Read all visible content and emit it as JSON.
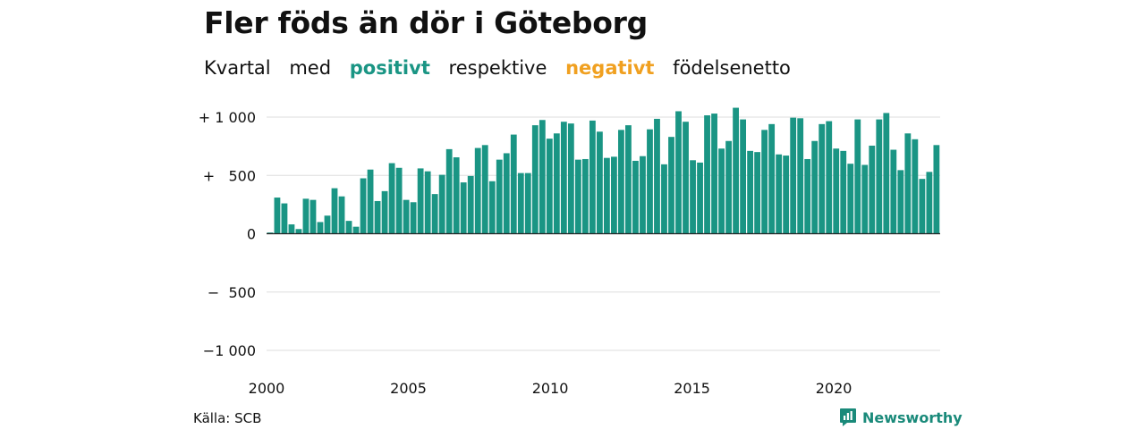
{
  "header": {
    "title": "Fler föds än dör i Göteborg",
    "subtitle_words": [
      "Kvartal",
      "med",
      "positivt",
      "respektive",
      "negativt",
      "födelsenetto"
    ]
  },
  "footer": {
    "source": "Källa: SCB",
    "brand": "Newsworthy"
  },
  "colors": {
    "positive": "#1a9584",
    "negative": "#f0a020",
    "grid": "#dddddd",
    "brand": "#1a8a7a"
  },
  "icons": {
    "brand_logo": "newsworthy-logo-icon"
  },
  "chart_data": {
    "type": "bar",
    "title": "Fler föds än dör i Göteborg",
    "subtitle": "Kvartal med positivt respektive negativt födelsenetto",
    "x_start_year": 2000,
    "x_start_quarter": 1,
    "xlim": [
      2000,
      2023.75
    ],
    "x_ticks": [
      {
        "value": 2000,
        "label": "2000"
      },
      {
        "value": 2005,
        "label": "2005"
      },
      {
        "value": 2010,
        "label": "2010"
      },
      {
        "value": 2015,
        "label": "2015"
      },
      {
        "value": 2020,
        "label": "2020"
      }
    ],
    "ylim": [
      -1000,
      1000
    ],
    "y_ticks": [
      {
        "value": 1000,
        "label": "+ 1 000"
      },
      {
        "value": 500,
        "label": "+   500"
      },
      {
        "value": 0,
        "label": "0"
      },
      {
        "value": -500,
        "label": "−  500"
      },
      {
        "value": -1000,
        "label": "−1 000"
      }
    ],
    "grid": true,
    "values": [
      10,
      310,
      260,
      80,
      40,
      300,
      290,
      100,
      155,
      390,
      320,
      110,
      60,
      475,
      550,
      280,
      365,
      605,
      565,
      290,
      270,
      560,
      535,
      340,
      505,
      725,
      655,
      440,
      495,
      735,
      760,
      450,
      635,
      690,
      850,
      520,
      520,
      930,
      975,
      815,
      860,
      960,
      945,
      635,
      640,
      970,
      875,
      650,
      660,
      890,
      930,
      625,
      665,
      895,
      985,
      595,
      830,
      1050,
      960,
      630,
      610,
      1015,
      1030,
      730,
      795,
      1080,
      980,
      710,
      700,
      890,
      940,
      680,
      670,
      995,
      990,
      640,
      795,
      940,
      965,
      730,
      710,
      600,
      980,
      590,
      755,
      980,
      1035,
      720,
      545,
      860,
      810,
      470,
      530,
      760
    ]
  }
}
